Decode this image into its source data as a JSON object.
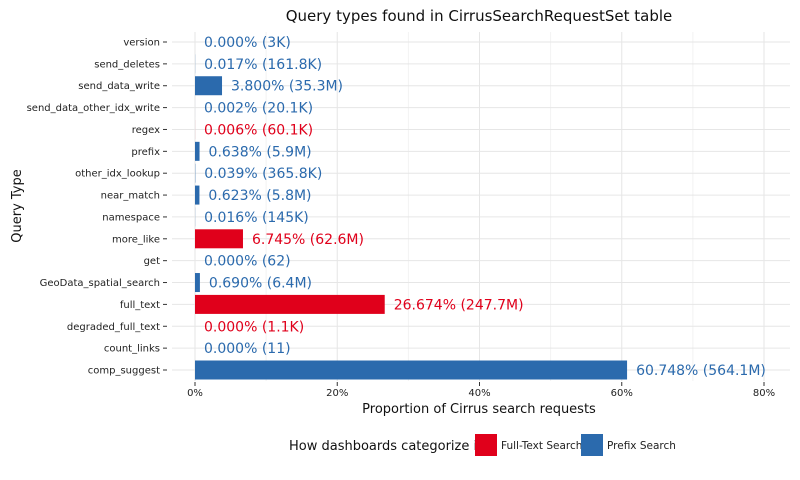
{
  "chart_data": {
    "type": "bar",
    "orientation": "horizontal",
    "title": "Query types found in CirrusSearchRequestSet table",
    "xlabel": "Proportion of Cirrus search requests",
    "ylabel": "Query Type",
    "xlim": [
      0,
      0.83
    ],
    "x_ticks": [
      0,
      0.2,
      0.4,
      0.6,
      0.8
    ],
    "x_tick_labels": [
      "0%",
      "20%",
      "40%",
      "60%",
      "80%"
    ],
    "grid": true,
    "legend": {
      "title": "How dashboards categorize it",
      "position": "bottom",
      "entries": [
        {
          "name": "Full-Text Search",
          "color": "#e0001b"
        },
        {
          "name": "Prefix Search",
          "color": "#2b6aad"
        }
      ]
    },
    "categories": [
      "version",
      "send_deletes",
      "send_data_write",
      "send_data_other_idx_write",
      "regex",
      "prefix",
      "other_idx_lookup",
      "near_match",
      "namespace",
      "more_like",
      "get",
      "GeoData_spatial_search",
      "full_text",
      "degraded_full_text",
      "count_links",
      "comp_suggest"
    ],
    "values": [
      0.0,
      0.00017,
      0.038,
      2e-05,
      6e-05,
      0.00638,
      0.00039,
      0.00623,
      0.00016,
      0.06745,
      0.0,
      0.0069,
      0.26674,
      0.0,
      0.0,
      0.60748
    ],
    "groups": [
      "Prefix Search",
      "Prefix Search",
      "Prefix Search",
      "Prefix Search",
      "Full-Text Search",
      "Prefix Search",
      "Prefix Search",
      "Prefix Search",
      "Prefix Search",
      "Full-Text Search",
      "Prefix Search",
      "Prefix Search",
      "Full-Text Search",
      "Full-Text Search",
      "Prefix Search",
      "Prefix Search"
    ],
    "labels": [
      "0.000% (3K)",
      "0.017% (161.8K)",
      "3.800% (35.3M)",
      "0.002% (20.1K)",
      "0.006% (60.1K)",
      "0.638% (5.9M)",
      "0.039% (365.8K)",
      "0.623% (5.8M)",
      "0.016% (145K)",
      "6.745% (62.6M)",
      "0.000% (62)",
      "0.690% (6.4M)",
      "26.674% (247.7M)",
      "0.000% (1.1K)",
      "0.000% (11)",
      "60.748% (564.1M)"
    ]
  }
}
